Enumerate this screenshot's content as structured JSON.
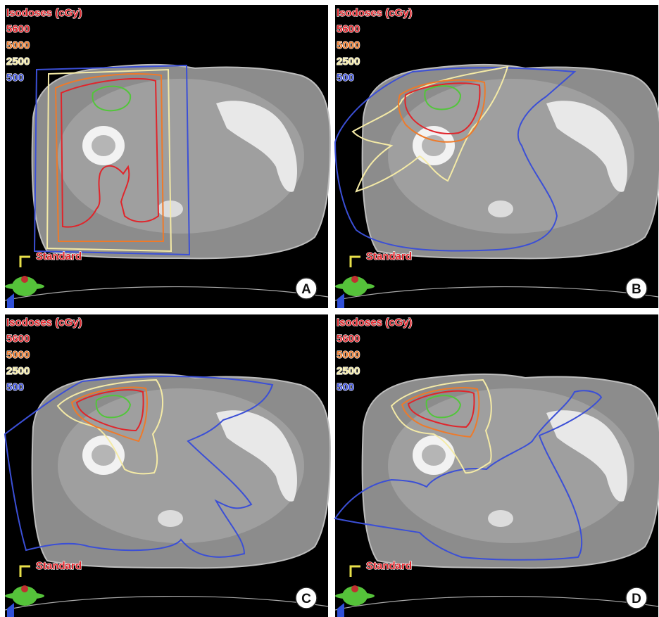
{
  "panels": [
    {
      "label": "A",
      "plan": "Standard",
      "legend": {
        "title": "Isodoses (cGy)",
        "levels": [
          {
            "dose": 5600,
            "color": "#e0252b"
          },
          {
            "dose": 5000,
            "color": "#ee7a2a"
          },
          {
            "dose": 2500,
            "color": "#f4eaa6"
          },
          {
            "dose": 500,
            "color": "#3b4fd6"
          }
        ]
      }
    },
    {
      "label": "B",
      "plan": "Standard",
      "legend": {
        "title": "Isodoses (cGy)",
        "levels": [
          {
            "dose": 5600,
            "color": "#e0252b"
          },
          {
            "dose": 5000,
            "color": "#ee7a2a"
          },
          {
            "dose": 2500,
            "color": "#f4eaa6"
          },
          {
            "dose": 500,
            "color": "#3b4fd6"
          }
        ]
      }
    },
    {
      "label": "C",
      "plan": "Standard",
      "legend": {
        "title": "Isodoses (cGy)",
        "levels": [
          {
            "dose": 5600,
            "color": "#e0252b"
          },
          {
            "dose": 5000,
            "color": "#ee7a2a"
          },
          {
            "dose": 2500,
            "color": "#f4eaa6"
          },
          {
            "dose": 500,
            "color": "#3b4fd6"
          }
        ]
      }
    },
    {
      "label": "D",
      "plan": "Standard",
      "legend": {
        "title": "Isodoses (cGy)",
        "levels": [
          {
            "dose": 5600,
            "color": "#e0252b"
          },
          {
            "dose": 5000,
            "color": "#ee7a2a"
          },
          {
            "dose": 2500,
            "color": "#f4eaa6"
          },
          {
            "dose": 500,
            "color": "#3b4fd6"
          }
        ]
      }
    }
  ]
}
